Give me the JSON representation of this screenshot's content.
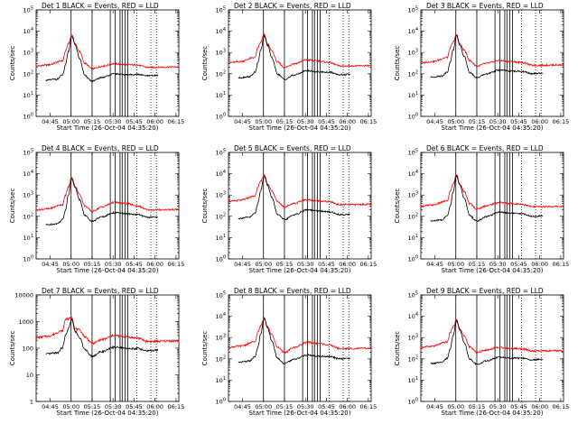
{
  "chart_data": {
    "type": "line",
    "layout": "3x3 grid",
    "x_axis": {
      "ticks": [
        {
          "t": 10,
          "label": "04:45"
        },
        {
          "t": 25,
          "label": "05:00"
        },
        {
          "t": 40,
          "label": "05:15"
        },
        {
          "t": 55,
          "label": "05:30"
        },
        {
          "t": 70,
          "label": "05:45"
        },
        {
          "t": 85,
          "label": "06:00"
        },
        {
          "t": 100,
          "label": "06:15"
        }
      ],
      "range": [
        0,
        102
      ],
      "unit": "minutes after 04:35:20",
      "xlabel": "Start Time (26-Oct-04 04:35:20)"
    },
    "y_axis": {
      "scale": "log",
      "ylabel": "Counts/sec"
    },
    "vertical_lines": {
      "solid": [
        25,
        40,
        53,
        56.5,
        60,
        61.5,
        63.5,
        65.5
      ],
      "dotted": [
        72,
        82,
        86
      ]
    },
    "black_series_x_range": [
      7,
      87
    ],
    "panels": [
      {
        "title": "Det 1 BLACK = Events, RED = LLD",
        "ylim": [
          1,
          100000
        ],
        "ytick_labels": [
          {
            "base": "10",
            "exp": "0"
          },
          {
            "base": "10",
            "exp": "1"
          },
          {
            "base": "10",
            "exp": "2"
          },
          {
            "base": "10",
            "exp": "3"
          },
          {
            "base": "10",
            "exp": "4"
          },
          {
            "base": "10",
            "exp": "5"
          }
        ],
        "red": {
          "pre": 230,
          "peak": 7000,
          "min": 170,
          "hump": 300,
          "end": 200
        },
        "black": {
          "pre": 50,
          "peak": 6000,
          "min": 45,
          "hump": 100,
          "end": 80
        }
      },
      {
        "title": "Det 2 BLACK = Events, RED = LLD",
        "ylim": [
          1,
          100000
        ],
        "ytick_labels": [
          {
            "base": "10",
            "exp": "0"
          },
          {
            "base": "10",
            "exp": "1"
          },
          {
            "base": "10",
            "exp": "2"
          },
          {
            "base": "10",
            "exp": "3"
          },
          {
            "base": "10",
            "exp": "4"
          },
          {
            "base": "10",
            "exp": "5"
          }
        ],
        "red": {
          "pre": 330,
          "peak": 7000,
          "min": 200,
          "hump": 450,
          "end": 230
        },
        "black": {
          "pre": 65,
          "peak": 6000,
          "min": 55,
          "hump": 140,
          "end": 90
        }
      },
      {
        "title": "Det 3 BLACK = Events, RED = LLD",
        "ylim": [
          1,
          100000
        ],
        "ytick_labels": [
          {
            "base": "10",
            "exp": "0"
          },
          {
            "base": "10",
            "exp": "1"
          },
          {
            "base": "10",
            "exp": "2"
          },
          {
            "base": "10",
            "exp": "3"
          },
          {
            "base": "10",
            "exp": "4"
          },
          {
            "base": "10",
            "exp": "5"
          }
        ],
        "red": {
          "pre": 330,
          "peak": 7000,
          "min": 230,
          "hump": 420,
          "end": 250
        },
        "black": {
          "pre": 70,
          "peak": 6000,
          "min": 65,
          "hump": 150,
          "end": 100
        }
      },
      {
        "title": "Det 4 BLACK = Events, RED = LLD",
        "ylim": [
          1,
          100000
        ],
        "ytick_labels": [
          {
            "base": "10",
            "exp": "0"
          },
          {
            "base": "10",
            "exp": "1"
          },
          {
            "base": "10",
            "exp": "2"
          },
          {
            "base": "10",
            "exp": "3"
          },
          {
            "base": "10",
            "exp": "4"
          },
          {
            "base": "10",
            "exp": "5"
          }
        ],
        "red": {
          "pre": 200,
          "peak": 7000,
          "min": 170,
          "hump": 450,
          "end": 200
        },
        "black": {
          "pre": 40,
          "peak": 6000,
          "min": 60,
          "hump": 150,
          "end": 90
        }
      },
      {
        "title": "Det 5 BLACK = Events, RED = LLD",
        "ylim": [
          1,
          100000
        ],
        "ytick_labels": [
          {
            "base": "10",
            "exp": "0"
          },
          {
            "base": "10",
            "exp": "1"
          },
          {
            "base": "10",
            "exp": "2"
          },
          {
            "base": "10",
            "exp": "3"
          },
          {
            "base": "10",
            "exp": "4"
          },
          {
            "base": "10",
            "exp": "5"
          }
        ],
        "red": {
          "pre": 500,
          "peak": 9000,
          "min": 280,
          "hump": 600,
          "end": 350
        },
        "black": {
          "pre": 80,
          "peak": 8000,
          "min": 70,
          "hump": 200,
          "end": 120
        }
      },
      {
        "title": "Det 6 BLACK = Events, RED = LLD",
        "ylim": [
          1,
          100000
        ],
        "ytick_labels": [
          {
            "base": "10",
            "exp": "0"
          },
          {
            "base": "10",
            "exp": "1"
          },
          {
            "base": "10",
            "exp": "2"
          },
          {
            "base": "10",
            "exp": "3"
          },
          {
            "base": "10",
            "exp": "4"
          },
          {
            "base": "10",
            "exp": "5"
          }
        ],
        "red": {
          "pre": 300,
          "peak": 9000,
          "min": 220,
          "hump": 450,
          "end": 280
        },
        "black": {
          "pre": 60,
          "peak": 8000,
          "min": 60,
          "hump": 160,
          "end": 100
        }
      },
      {
        "title": "Det 7 BLACK = Events, RED = LLD",
        "ylim": [
          1,
          10000
        ],
        "ytick_labels": [
          {
            "base": "1",
            "exp": ""
          },
          {
            "base": "10",
            "exp": ""
          },
          {
            "base": "100",
            "exp": ""
          },
          {
            "base": "1000",
            "exp": ""
          },
          {
            "base": "10000",
            "exp": ""
          }
        ],
        "red": {
          "pre": 250,
          "peak": 1500,
          "min": 150,
          "hump": 300,
          "end": 180
        },
        "black": {
          "pre": 60,
          "peak": 1200,
          "min": 50,
          "hump": 110,
          "end": 80
        }
      },
      {
        "title": "Det 8 BLACK = Events, RED = LLD",
        "ylim": [
          1,
          100000
        ],
        "ytick_labels": [
          {
            "base": "10",
            "exp": "0"
          },
          {
            "base": "10",
            "exp": "1"
          },
          {
            "base": "10",
            "exp": "2"
          },
          {
            "base": "10",
            "exp": "3"
          },
          {
            "base": "10",
            "exp": "4"
          },
          {
            "base": "10",
            "exp": "5"
          }
        ],
        "red": {
          "pre": 350,
          "peak": 9000,
          "min": 200,
          "hump": 600,
          "end": 300
        },
        "black": {
          "pre": 70,
          "peak": 8000,
          "min": 60,
          "hump": 150,
          "end": 100
        }
      },
      {
        "title": "Det 9 BLACK = Events, RED = LLD",
        "ylim": [
          1,
          100000
        ],
        "ytick_labels": [
          {
            "base": "10",
            "exp": "0"
          },
          {
            "base": "10",
            "exp": "1"
          },
          {
            "base": "10",
            "exp": "2"
          },
          {
            "base": "10",
            "exp": "3"
          },
          {
            "base": "10",
            "exp": "4"
          },
          {
            "base": "10",
            "exp": "5"
          }
        ],
        "red": {
          "pre": 350,
          "peak": 7000,
          "min": 200,
          "hump": 350,
          "end": 230
        },
        "black": {
          "pre": 60,
          "peak": 6000,
          "min": 55,
          "hump": 120,
          "end": 90
        }
      }
    ]
  }
}
